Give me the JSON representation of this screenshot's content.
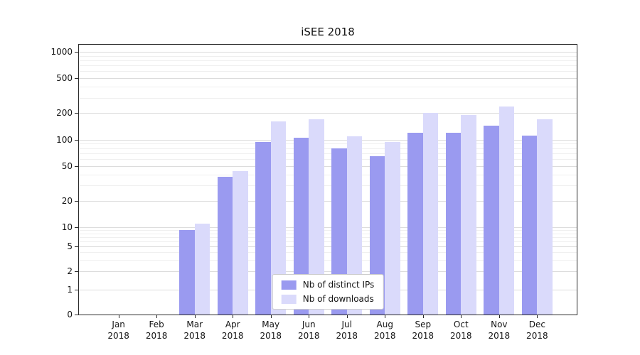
{
  "chart_data": {
    "type": "bar",
    "title": "iSEE 2018",
    "categories": [
      "Jan 2018",
      "Feb 2018",
      "Mar 2018",
      "Apr 2018",
      "May 2018",
      "Jun 2018",
      "Jul 2018",
      "Aug 2018",
      "Sep 2018",
      "Oct 2018",
      "Nov 2018",
      "Dec 2018"
    ],
    "series": [
      {
        "name": "Nb of distinct IPs",
        "color": "#9a9af0",
        "values": [
          0,
          0,
          9,
          38,
          95,
          105,
          80,
          65,
          120,
          120,
          145,
          112
        ]
      },
      {
        "name": "Nb of downloads",
        "color": "#dadafb",
        "values": [
          0,
          0,
          11,
          44,
          160,
          170,
          110,
          95,
          200,
          190,
          240,
          170
        ]
      }
    ],
    "yticks": [
      0,
      1,
      2,
      5,
      10,
      20,
      50,
      100,
      200,
      500,
      1000
    ],
    "xlabel": "",
    "ylabel": "",
    "y_scale": "symlog",
    "ylim": [
      0,
      1000
    ],
    "grid": "on",
    "legend_position": "lower center"
  }
}
